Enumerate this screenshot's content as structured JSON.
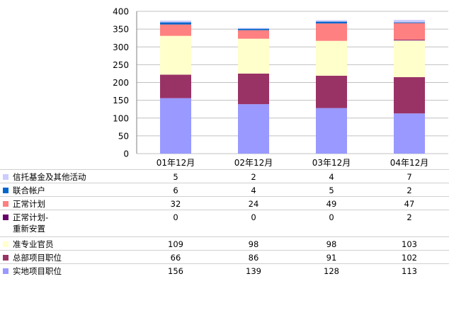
{
  "chart_data": {
    "type": "bar",
    "stacked": true,
    "categories": [
      "01年12月",
      "02年12月",
      "03年12月",
      "04年12月"
    ],
    "ylim": [
      0,
      400
    ],
    "yticks": [
      0,
      50,
      100,
      150,
      200,
      250,
      300,
      350,
      400
    ],
    "grid": true,
    "legend": "table-below",
    "series": [
      {
        "name": "实地项目职位",
        "color": "#9999ff",
        "values": [
          156,
          139,
          128,
          113
        ]
      },
      {
        "name": "总部项目职位",
        "color": "#993366",
        "values": [
          66,
          86,
          91,
          102
        ]
      },
      {
        "name": "准专业官员",
        "color": "#ffffcc",
        "values": [
          109,
          98,
          98,
          103
        ]
      },
      {
        "name": "正常计划-\n重新安置",
        "color": "#660066",
        "values": [
          0,
          0,
          0,
          2
        ]
      },
      {
        "name": "正常计划",
        "color": "#ff8080",
        "values": [
          32,
          24,
          49,
          47
        ]
      },
      {
        "name": "联合帐户",
        "color": "#0066cc",
        "values": [
          6,
          4,
          5,
          2
        ]
      },
      {
        "name": "信托基金及其他活动",
        "color": "#ccccff",
        "values": [
          5,
          2,
          4,
          7
        ]
      }
    ]
  }
}
